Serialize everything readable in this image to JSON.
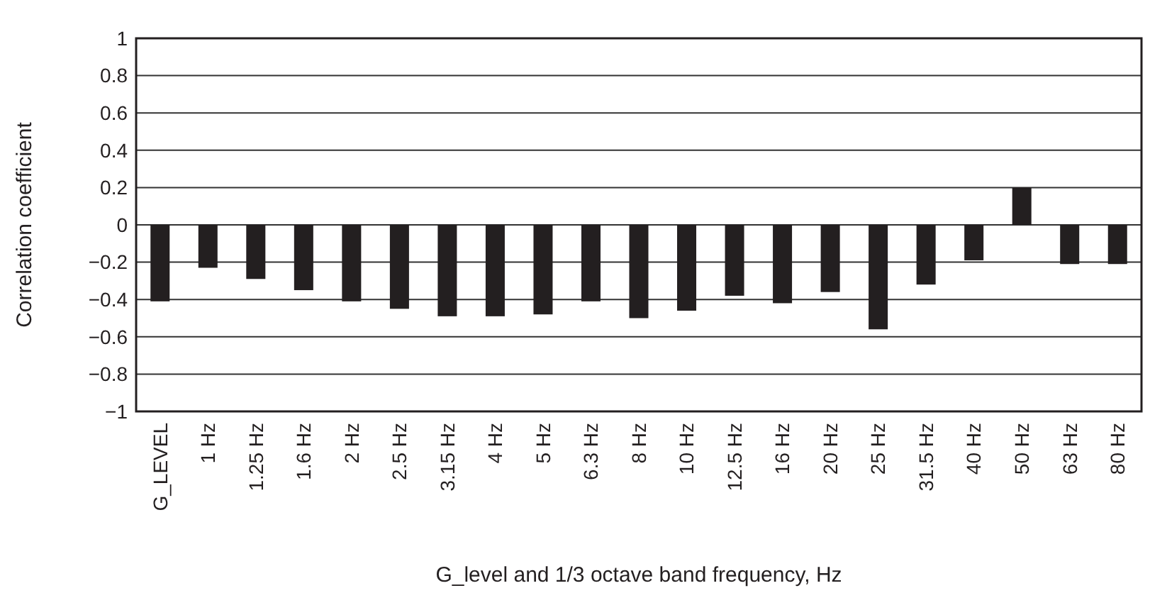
{
  "chart_data": {
    "type": "bar",
    "xlabel": "G_level and 1/3 octave band frequency, Hz",
    "ylabel": "Correlation coefficient",
    "categories": [
      "G_LEVEL",
      "1 Hz",
      "1.25 Hz",
      "1.6 Hz",
      "2 Hz",
      "2.5 Hz",
      "3.15 Hz",
      "4 Hz",
      "5 Hz",
      "6.3 Hz",
      "8 Hz",
      "10 Hz",
      "12.5 Hz",
      "16 Hz",
      "20 Hz",
      "25 Hz",
      "31.5 Hz",
      "40 Hz",
      "50 Hz",
      "63 Hz",
      "80 Hz"
    ],
    "values": [
      -0.41,
      -0.23,
      -0.29,
      -0.35,
      -0.41,
      -0.45,
      -0.49,
      -0.49,
      -0.48,
      -0.41,
      -0.5,
      -0.46,
      -0.38,
      -0.42,
      -0.36,
      -0.56,
      -0.32,
      -0.19,
      0.2,
      -0.21,
      -0.21
    ],
    "color": "#231f20",
    "ylim": [
      -1,
      1
    ],
    "yticks": [
      {
        "value": -1,
        "label": "−1"
      },
      {
        "value": -0.8,
        "label": "−0.8"
      },
      {
        "value": -0.6,
        "label": "−0.6"
      },
      {
        "value": -0.4,
        "label": "−0.4"
      },
      {
        "value": -0.2,
        "label": "−0.2"
      },
      0,
      0.2,
      0.4,
      0.6,
      0.8,
      1
    ],
    "grid": "y"
  }
}
